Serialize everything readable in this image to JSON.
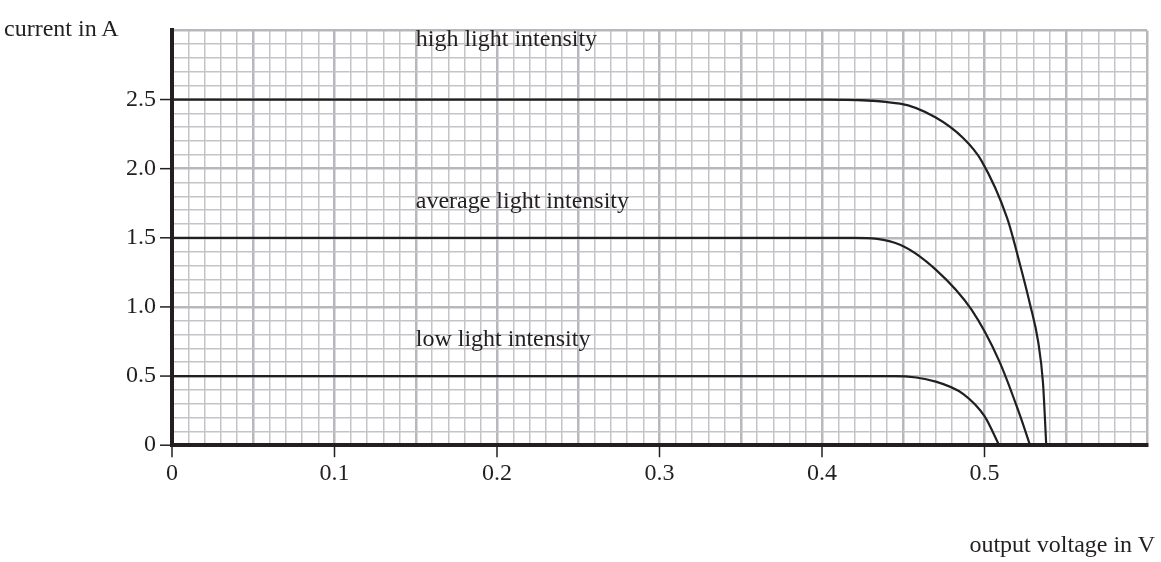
{
  "chart_data": {
    "type": "line",
    "xlabel": "output voltage in V",
    "ylabel": "current in A",
    "xlim": [
      0,
      0.6
    ],
    "ylim": [
      0,
      3
    ],
    "xticks": [
      0,
      {
        "value": 0.01,
        "label": null
      },
      {
        "value": 0.02,
        "label": null
      },
      {
        "value": 0.03,
        "label": null
      },
      {
        "value": 0.04,
        "label": null
      },
      {
        "value": 0.05,
        "label": null
      },
      {
        "value": 0.06,
        "label": null
      },
      {
        "value": 0.07,
        "label": null
      },
      {
        "value": 0.08,
        "label": null
      },
      {
        "value": 0.09,
        "label": null
      },
      0.1,
      {
        "value": 0.11,
        "label": null
      },
      {
        "value": 0.12,
        "label": null
      },
      {
        "value": 0.13,
        "label": null
      },
      {
        "value": 0.14,
        "label": null
      },
      {
        "value": 0.15,
        "label": null
      },
      {
        "value": 0.16,
        "label": null
      },
      {
        "value": 0.17,
        "label": null
      },
      {
        "value": 0.18,
        "label": null
      },
      {
        "value": 0.19,
        "label": null
      },
      0.2,
      {
        "value": 0.21,
        "label": null
      },
      {
        "value": 0.22,
        "label": null
      },
      {
        "value": 0.23,
        "label": null
      },
      {
        "value": 0.24,
        "label": null
      },
      {
        "value": 0.25,
        "label": null
      },
      {
        "value": 0.26,
        "label": null
      },
      {
        "value": 0.27,
        "label": null
      },
      {
        "value": 0.28,
        "label": null
      },
      {
        "value": 0.29,
        "label": null
      },
      0.3,
      {
        "value": 0.31,
        "label": null
      },
      {
        "value": 0.32,
        "label": null
      },
      {
        "value": 0.33,
        "label": null
      },
      {
        "value": 0.34,
        "label": null
      },
      {
        "value": 0.35,
        "label": null
      },
      {
        "value": 0.36,
        "label": null
      },
      {
        "value": 0.37,
        "label": null
      },
      {
        "value": 0.38,
        "label": null
      },
      {
        "value": 0.39,
        "label": null
      },
      0.4,
      {
        "value": 0.41,
        "label": null
      },
      {
        "value": 0.42,
        "label": null
      },
      {
        "value": 0.43,
        "label": null
      },
      {
        "value": 0.44,
        "label": null
      },
      {
        "value": 0.45,
        "label": null
      },
      {
        "value": 0.46,
        "label": null
      },
      {
        "value": 0.47,
        "label": null
      },
      {
        "value": 0.48,
        "label": null
      },
      {
        "value": 0.49,
        "label": null
      },
      0.5,
      {
        "value": 0.51,
        "label": null
      },
      {
        "value": 0.52,
        "label": null
      },
      {
        "value": 0.53,
        "label": null
      },
      {
        "value": 0.54,
        "label": null
      },
      {
        "value": 0.55,
        "label": null
      },
      {
        "value": 0.56,
        "label": null
      },
      {
        "value": 0.57,
        "label": null
      },
      {
        "value": 0.58,
        "label": null
      },
      {
        "value": 0.59,
        "label": null
      },
      {
        "value": 0.6,
        "label": null
      }
    ],
    "yticks": [
      0,
      {
        "value": 0.1,
        "label": null
      },
      {
        "value": 0.2,
        "label": null
      },
      {
        "value": 0.3,
        "label": null
      },
      {
        "value": 0.4,
        "label": null
      },
      0.5,
      {
        "value": 0.6,
        "label": null
      },
      {
        "value": 0.7,
        "label": null
      },
      {
        "value": 0.8,
        "label": null
      },
      {
        "value": 0.9,
        "label": null
      },
      {
        "value": 1,
        "label": "1.0"
      },
      {
        "value": 1.1,
        "label": null
      },
      {
        "value": 1.2,
        "label": null
      },
      {
        "value": 1.3,
        "label": null
      },
      {
        "value": 1.4,
        "label": null
      },
      1.5,
      {
        "value": 1.6,
        "label": null
      },
      {
        "value": 1.7,
        "label": null
      },
      {
        "value": 1.8,
        "label": null
      },
      {
        "value": 1.9,
        "label": null
      },
      {
        "value": 2,
        "label": "2.0"
      },
      {
        "value": 2.1,
        "label": null
      },
      {
        "value": 2.2,
        "label": null
      },
      {
        "value": 2.3,
        "label": null
      },
      {
        "value": 2.4,
        "label": null
      },
      2.5,
      {
        "value": 2.6,
        "label": null
      },
      {
        "value": 2.7,
        "label": null
      },
      {
        "value": 2.8,
        "label": null
      },
      {
        "value": 2.9,
        "label": null
      },
      {
        "value": 3,
        "label": null
      }
    ],
    "grid": true,
    "marker": "none",
    "line_style": "solid",
    "series": [
      {
        "name": "high light intensity",
        "color": "#231f20",
        "x": [
          0,
          0.4,
          0.448,
          0.47,
          0.487,
          0.498,
          0.514,
          0.522,
          0.528,
          0.533,
          0.536,
          0.538
        ],
        "values": [
          2.5,
          2.5,
          2.47,
          2.37,
          2.22,
          2.06,
          1.64,
          1.3,
          1.02,
          0.75,
          0.45,
          0
        ]
      },
      {
        "name": "average light intensity",
        "color": "#231f20",
        "x": [
          0,
          0.42,
          0.448,
          0.47,
          0.492,
          0.509,
          0.522,
          0.528
        ],
        "values": [
          1.5,
          1.5,
          1.45,
          1.27,
          0.98,
          0.61,
          0.21,
          0
        ]
      },
      {
        "name": "low light intensity",
        "color": "#231f20",
        "x": [
          0,
          0.445,
          0.47,
          0.487,
          0.5,
          0.509
        ],
        "values": [
          0.5,
          0.5,
          0.46,
          0.37,
          0.21,
          0
        ]
      }
    ]
  }
}
